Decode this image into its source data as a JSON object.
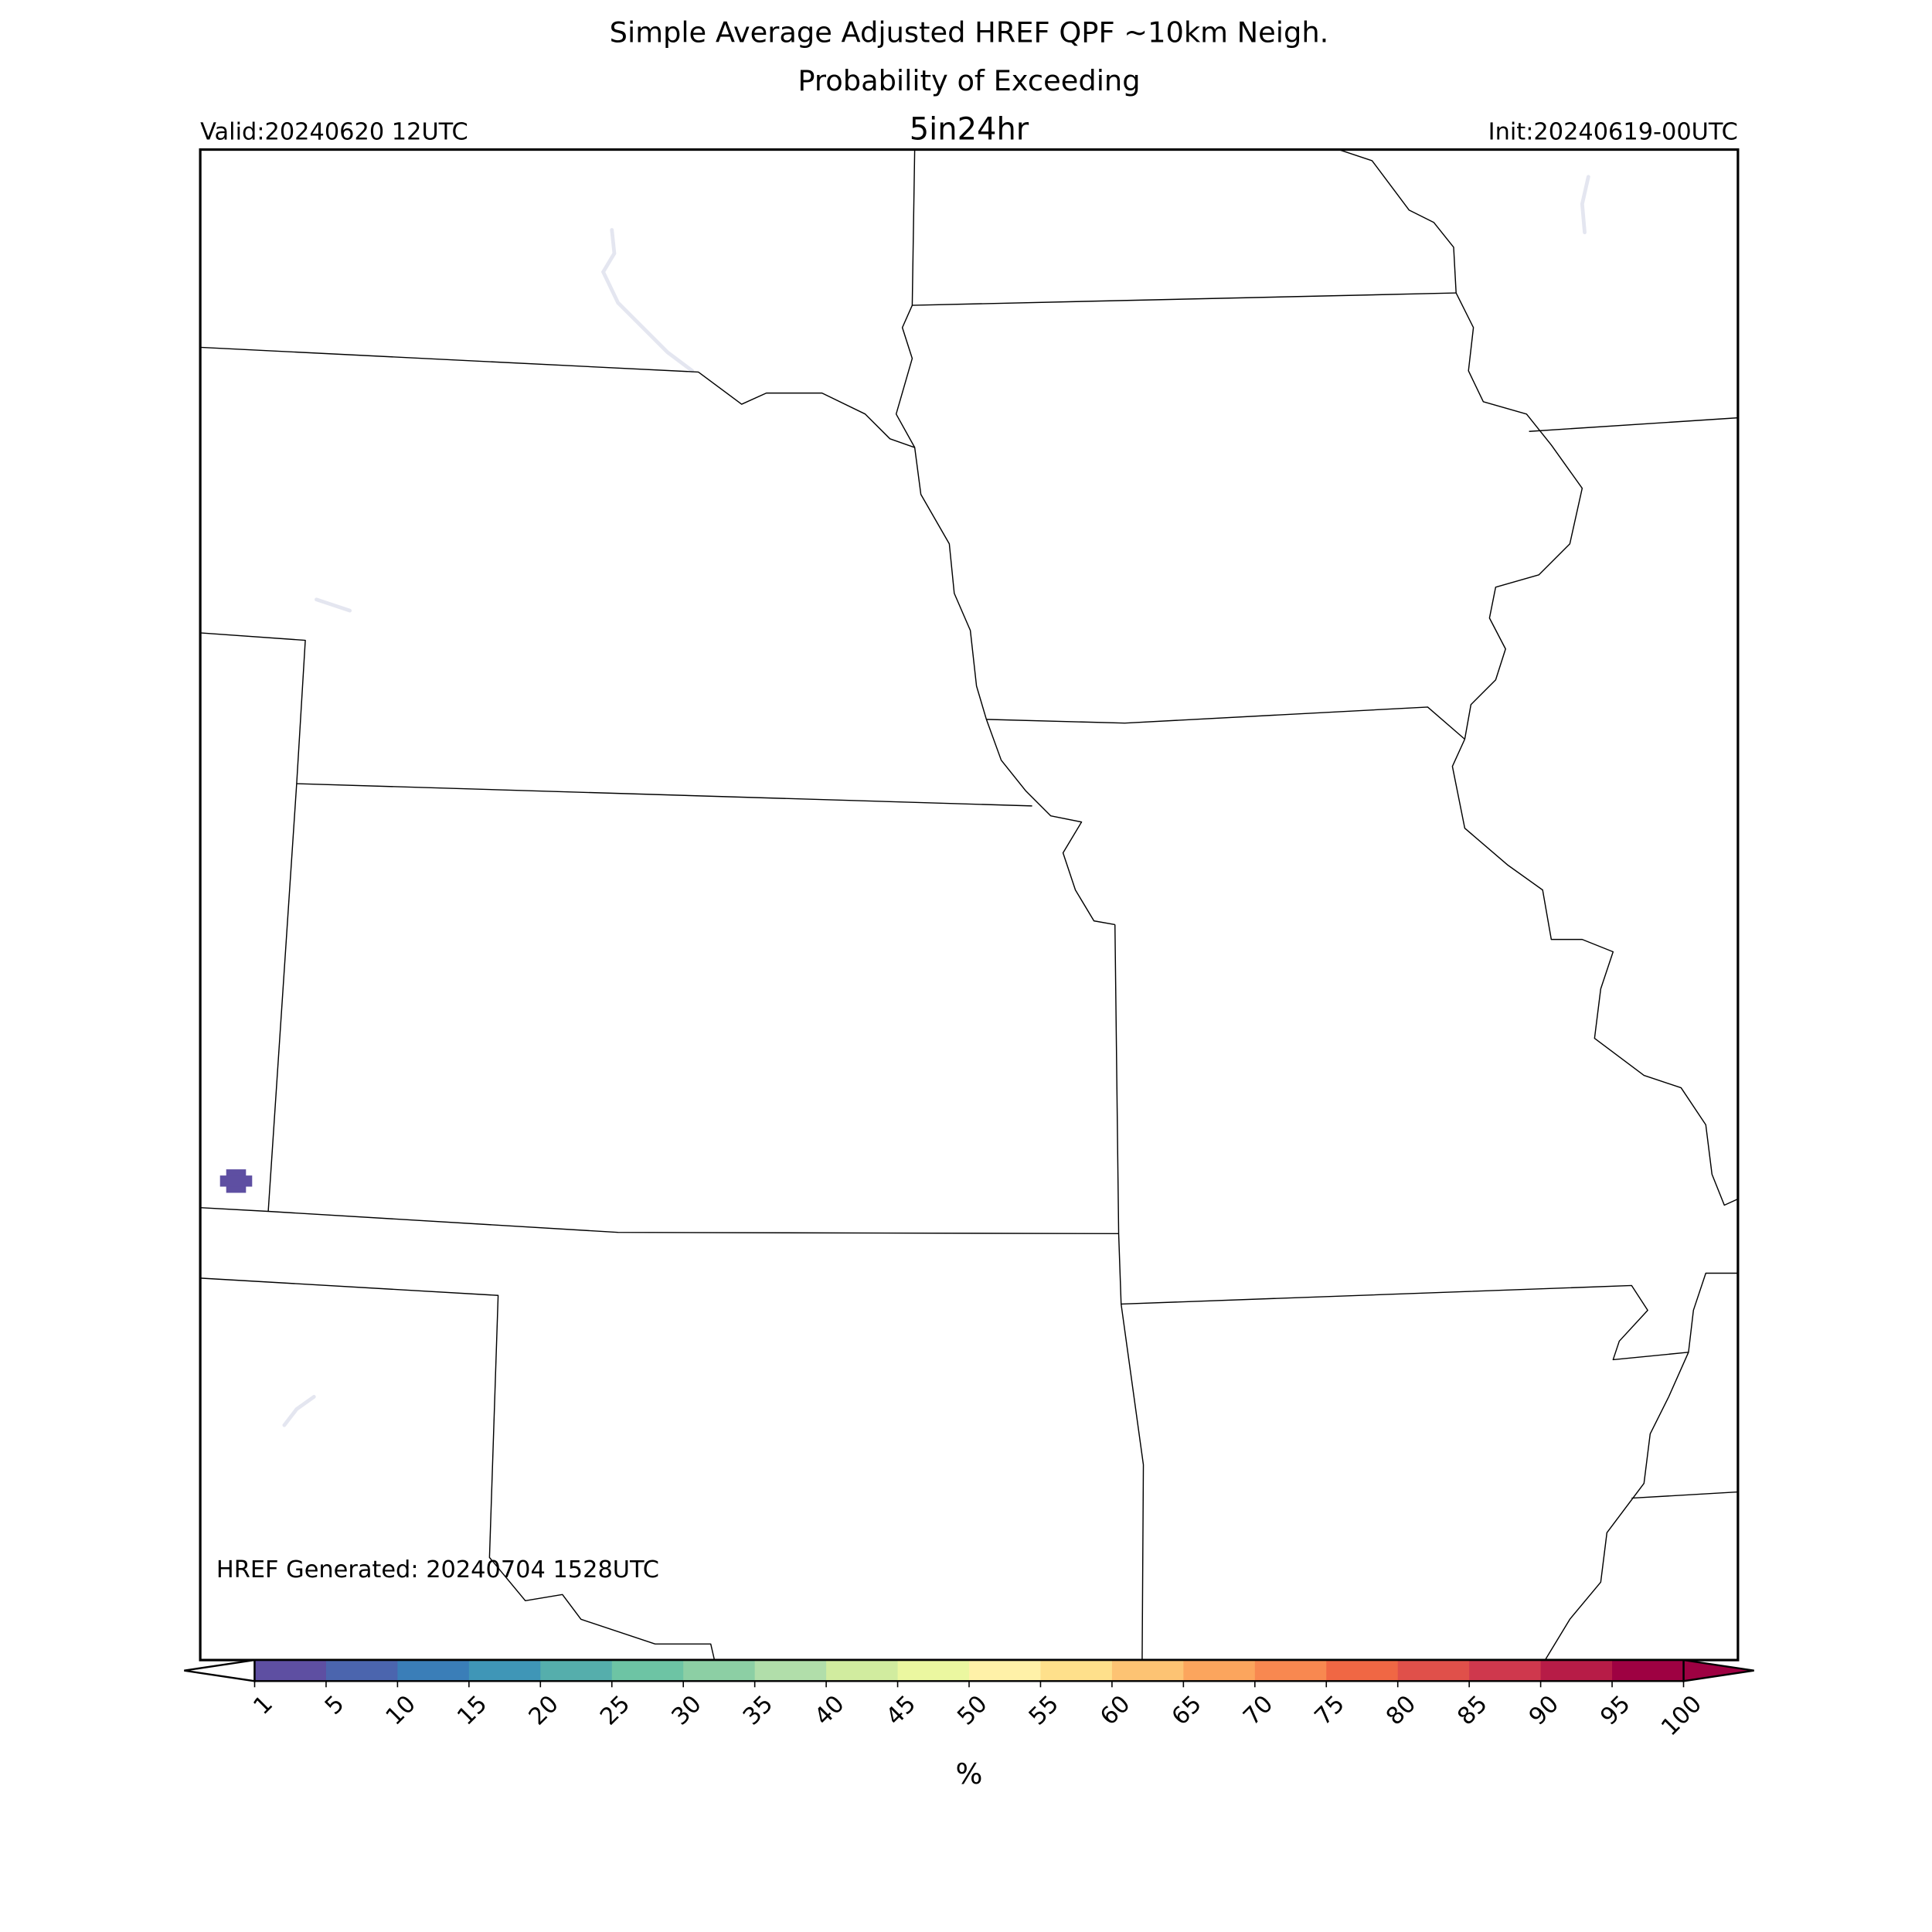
{
  "header": {
    "title": "Simple Average Adjusted HREF QPF ~10km Neigh.",
    "subtitle": "Probability of Exceeding",
    "threshold": "5in24hr",
    "valid": "Valid:20240620 12UTC",
    "init": "Init:20240619-00UTC"
  },
  "map": {
    "footer": "HREF Generated: 20240704 1528UTC"
  },
  "colorbar": {
    "label": "%",
    "ticks": [
      1,
      5,
      10,
      15,
      20,
      25,
      30,
      35,
      40,
      45,
      50,
      55,
      60,
      65,
      70,
      75,
      80,
      85,
      90,
      95,
      100
    ],
    "colors": [
      "#5e4fa2",
      "#4b65ae",
      "#3a7eb8",
      "#3f96b7",
      "#55aeac",
      "#6dc4a4",
      "#8ccfa4",
      "#b1deaa",
      "#d1ec9f",
      "#ebf7a0",
      "#fff1a8",
      "#fee08b",
      "#fdc373",
      "#fca55d",
      "#f88850",
      "#f06744",
      "#e0504a",
      "#cf384d",
      "#b71c47",
      "#9e0142"
    ]
  }
}
